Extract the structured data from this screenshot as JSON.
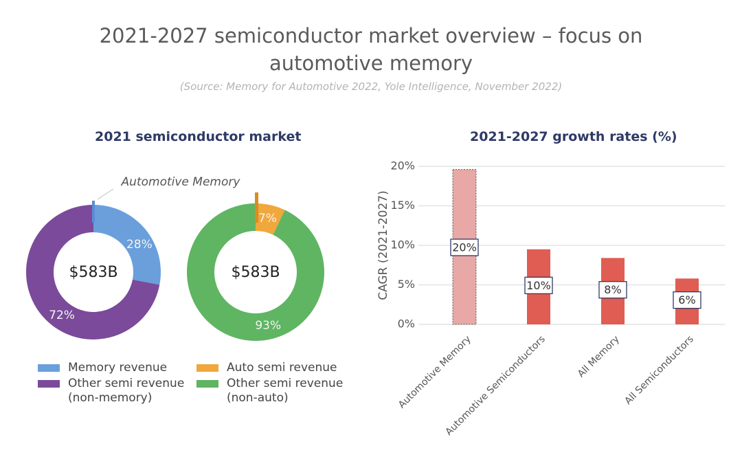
{
  "title_line1": "2021-2027 semiconductor market overview – focus on",
  "title_line2": "automotive memory",
  "source": "(Source: Memory for Automotive 2022, Yole Intelligence, November 2022)",
  "left_panel_title": "2021 semiconductor market",
  "right_panel_title": "2021-2027 growth rates (%)",
  "chart_data": [
    {
      "type": "pie",
      "subtype": "donut",
      "center_label": "$583B",
      "annotation": "Automotive Memory",
      "slices": [
        {
          "label": "Memory revenue",
          "value": 28,
          "value_label": "28%",
          "color": "#6a9fdc"
        },
        {
          "label": "Other semi revenue (non-memory)",
          "value": 72,
          "value_label": "72%",
          "color": "#7b4a9a"
        }
      ]
    },
    {
      "type": "pie",
      "subtype": "donut",
      "center_label": "$583B",
      "slices": [
        {
          "label": "Auto semi revenue",
          "value": 7,
          "value_label": "7%",
          "color": "#f0a73c"
        },
        {
          "label": "Other semi revenue (non-auto)",
          "value": 93,
          "value_label": "93%",
          "color": "#5fb562"
        }
      ]
    },
    {
      "type": "bar",
      "title": "2021-2027 growth rates (%)",
      "ylabel": "CAGR (2021-2027)",
      "ylim": [
        0,
        20
      ],
      "yticks": [
        "0%",
        "5%",
        "10%",
        "15%",
        "20%"
      ],
      "categories": [
        "Automotive Memory",
        "Automotive Semiconductors",
        "All Memory",
        "All Semiconductors"
      ],
      "values": [
        19.6,
        9.5,
        8.4,
        5.8
      ],
      "value_labels": [
        "20%",
        "10%",
        "8%",
        "6%"
      ],
      "colors": [
        "#e8a8a5",
        "#df5d52",
        "#df5d52",
        "#df5d52"
      ],
      "grid": true
    }
  ],
  "legend": {
    "memory_revenue": "Memory revenue",
    "other_semi_nonmemory_1": "Other semi revenue",
    "other_semi_nonmemory_2": "(non-memory)",
    "auto_semi_revenue": "Auto semi revenue",
    "other_semi_nonauto_1": "Other semi revenue",
    "other_semi_nonauto_2": "(non-auto)",
    "colors": {
      "memory": "#6a9fdc",
      "other_nonmemory": "#7b4a9a",
      "auto": "#f0a73c",
      "other_nonauto": "#5fb562"
    }
  }
}
